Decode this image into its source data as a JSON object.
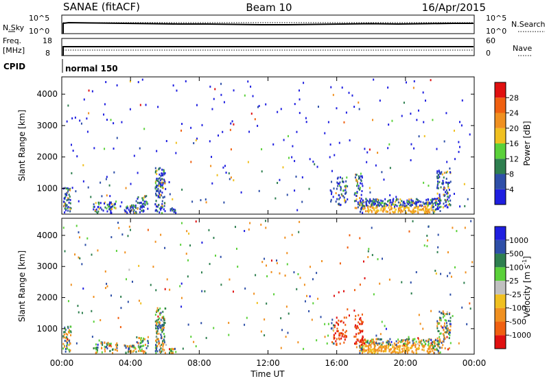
{
  "header": {
    "station": "SANAE (fitACF)",
    "beam": "Beam 10",
    "date": "16/Apr/2015"
  },
  "top_panels": {
    "nsky_label": "N.Sky",
    "nsky_tick_high": "10^5",
    "nsky_tick_low": "10^0",
    "nsearch_label": "N.Search",
    "nsearch_tick_high": "10^5",
    "nsearch_tick_low": "10^0",
    "freq_label": "Freq.",
    "freq_unit": "[MHz]",
    "freq_tick_high": "18",
    "freq_tick_low": "8",
    "nave_label": "Nave",
    "nave_tick_high": "60",
    "nave_tick_low": "0",
    "cpid_label": "CPID",
    "cpid_value": "normal 150"
  },
  "colors": {
    "power": [
      "#1f1fe0",
      "#2e4fa8",
      "#2e7f4f",
      "#5bd13a",
      "#f0c020",
      "#f09020",
      "#f06010",
      "#e01010"
    ],
    "velocity": [
      "#e01010",
      "#f06010",
      "#f09020",
      "#f0c020",
      "#c0c0c0",
      "#5bd13a",
      "#2e7f4f",
      "#2e4fa8",
      "#1f1fe0"
    ]
  },
  "chart_data": [
    {
      "type": "heatmap",
      "name": "power",
      "ylabel": "Slant Range [km]",
      "xlabel": "",
      "x_ticks": [
        "00:00",
        "04:00",
        "08:00",
        "12:00",
        "16:00",
        "20:00",
        "00:00"
      ],
      "y_ticks": [
        "1000",
        "2000",
        "3000",
        "4000"
      ],
      "ylim": [
        180,
        4550
      ],
      "xlim_hours": [
        0,
        24
      ],
      "colorbar_label": "Power [dB]",
      "colorbar_ticks": [
        "4",
        "8",
        "12",
        "16",
        "20",
        "24",
        "28"
      ],
      "colorbar_range": [
        0,
        32
      ]
    },
    {
      "type": "heatmap",
      "name": "velocity",
      "ylabel": "Slant Range [km]",
      "xlabel": "Time UT",
      "x_ticks": [
        "00:00",
        "04:00",
        "08:00",
        "12:00",
        "16:00",
        "20:00",
        "00:00"
      ],
      "y_ticks": [
        "1000",
        "2000",
        "3000",
        "4000"
      ],
      "ylim": [
        180,
        4550
      ],
      "xlim_hours": [
        0,
        24
      ],
      "colorbar_label": "Velocity [m s",
      "colorbar_label_sup": "-1",
      "colorbar_label_end": "]",
      "colorbar_ticks": [
        "1000",
        "500",
        "100",
        "25",
        "-25",
        "-100",
        "-500",
        "-1000"
      ]
    }
  ]
}
